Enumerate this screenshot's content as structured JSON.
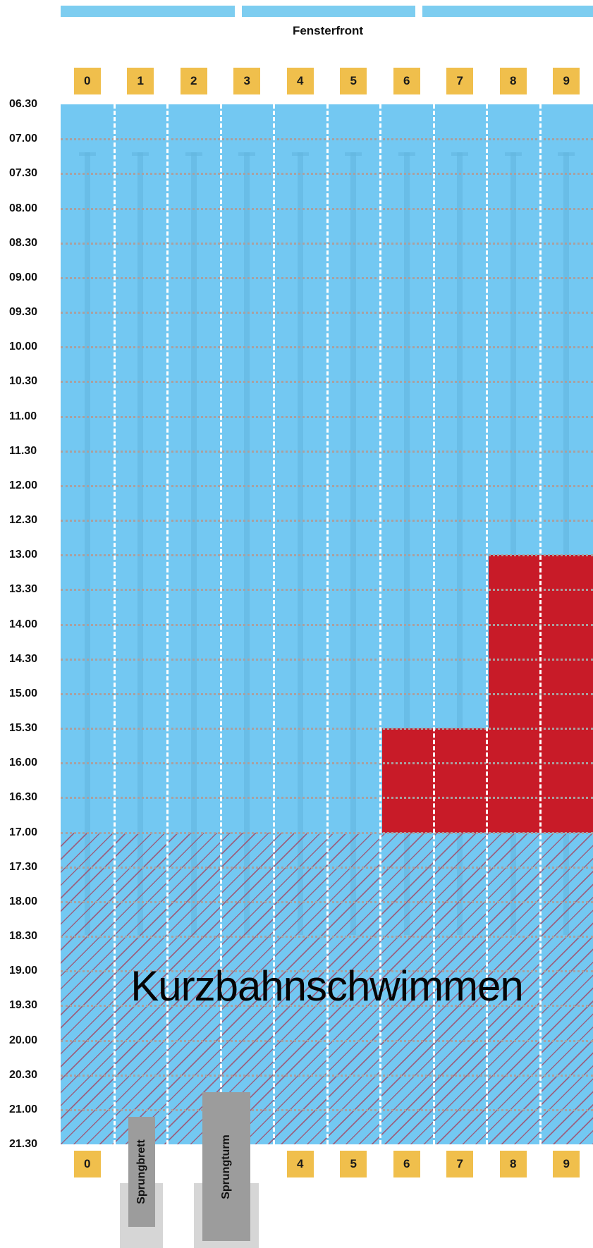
{
  "header": {
    "label": "Fensterfront"
  },
  "lanes": [
    "0",
    "1",
    "2",
    "3",
    "4",
    "5",
    "6",
    "7",
    "8",
    "9"
  ],
  "bottom_lanes": [
    "0",
    "",
    "",
    "",
    "4",
    "5",
    "6",
    "7",
    "8",
    "9"
  ],
  "times": [
    "06.30",
    "07.00",
    "07.30",
    "08.00",
    "08.30",
    "09.00",
    "09.30",
    "10.00",
    "10.30",
    "11.00",
    "11.30",
    "12.00",
    "12.30",
    "13.00",
    "13.30",
    "14.00",
    "14.30",
    "15.00",
    "15.30",
    "16.00",
    "16.30",
    "17.00",
    "17.30",
    "18.00",
    "18.30",
    "19.00",
    "19.30",
    "20.00",
    "20.30",
    "21.00",
    "21.30"
  ],
  "occupancy": [
    {
      "lanes": [
        8,
        9
      ],
      "from": "13.00",
      "to": "17.00",
      "color": "#c81b28"
    },
    {
      "lanes": [
        6,
        7
      ],
      "from": "15.30",
      "to": "17.00",
      "color": "#c81b28"
    }
  ],
  "short_course": {
    "label": "Kurzbahnschwimmen",
    "from": "17.00",
    "to": "21.30",
    "pattern": "diagonal-hatch"
  },
  "diving": {
    "springboard": {
      "label": "Sprungbrett",
      "lane": 1
    },
    "platform": {
      "label": "Sprungturm",
      "lanes": [
        2,
        3
      ]
    }
  },
  "colors": {
    "water": "#73c8f2",
    "window": "#7dcdf0",
    "badge": "#f0bf4c",
    "occupied": "#c81b28",
    "divider": "#ffffff"
  }
}
